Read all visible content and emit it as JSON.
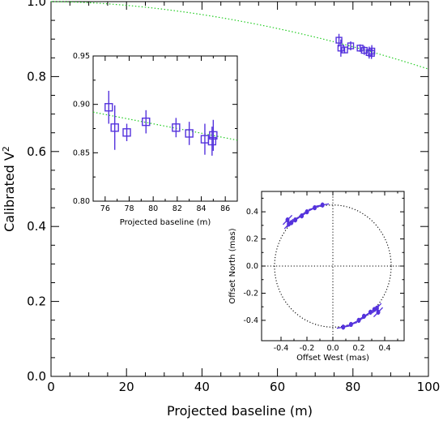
{
  "chart_data": [
    {
      "type": "scatter",
      "xlabel": "Projected baseline (m)",
      "ylabel": "Calibrated V",
      "ylabel_sup": "2",
      "xlim": [
        0,
        100
      ],
      "ylim": [
        0,
        1.0
      ],
      "xticks": [
        0,
        20,
        40,
        60,
        80,
        100
      ],
      "xtick_labels": [
        "0",
        "20",
        "40",
        "60",
        "80",
        "100"
      ],
      "yticks": [
        0,
        0.2,
        0.4,
        0.6,
        0.8,
        1.0
      ],
      "ytick_labels": [
        "0.0",
        "0.2",
        "0.4",
        "0.6",
        "0.8",
        "1.0"
      ],
      "model": {
        "style": "dotted",
        "color": "#22cc22",
        "v2_at_0": 1.0,
        "v2_at_100": 0.82
      },
      "points": [
        {
          "x": 76.3,
          "y": 0.897,
          "err": 0.017
        },
        {
          "x": 76.8,
          "y": 0.876,
          "err": 0.023
        },
        {
          "x": 77.8,
          "y": 0.871,
          "err": 0.009
        },
        {
          "x": 79.4,
          "y": 0.882,
          "err": 0.012
        },
        {
          "x": 81.9,
          "y": 0.876,
          "err": 0.01
        },
        {
          "x": 83.0,
          "y": 0.87,
          "err": 0.012
        },
        {
          "x": 84.3,
          "y": 0.864,
          "err": 0.016
        },
        {
          "x": 84.9,
          "y": 0.862,
          "err": 0.015
        },
        {
          "x": 85.0,
          "y": 0.868,
          "err": 0.016
        }
      ],
      "point_color": "#5533dd"
    },
    {
      "type": "scatter",
      "xlabel": "Projected baseline (m)",
      "ylabel": "",
      "xlim": [
        75,
        87
      ],
      "ylim": [
        0.8,
        0.95
      ],
      "xticks": [
        76,
        78,
        80,
        82,
        84,
        86
      ],
      "xtick_labels": [
        "76",
        "78",
        "80",
        "82",
        "84",
        "86"
      ],
      "yticks": [
        0.8,
        0.85,
        0.9,
        0.95
      ],
      "ytick_labels": [
        "0.80",
        "0.85",
        "0.90",
        "0.95"
      ],
      "model": {
        "style": "dotted",
        "color": "#22cc22",
        "v2_at_75": 0.892,
        "v2_at_87": 0.863
      },
      "points": "same as main panel"
    },
    {
      "type": "scatter",
      "xlabel": "Offset West (mas)",
      "ylabel": "Offset North (mas)",
      "xlim": [
        -0.55,
        0.55
      ],
      "ylim": [
        -0.55,
        0.55
      ],
      "xticks": [
        -0.4,
        -0.2,
        0.0,
        0.2,
        0.4
      ],
      "xtick_labels": [
        "-0.4",
        "-0.2",
        "0.0",
        "0.2",
        "0.4"
      ],
      "yticks": [
        -0.4,
        -0.2,
        0.0,
        0.2,
        0.4
      ],
      "ytick_labels": [
        "-0.4",
        "-0.2",
        "0.0",
        "0.2",
        "0.4"
      ],
      "circle_radius": 0.45,
      "cross": true,
      "points": [
        {
          "x": -0.08,
          "y": 0.45
        },
        {
          "x": -0.14,
          "y": 0.43
        },
        {
          "x": -0.2,
          "y": 0.4
        },
        {
          "x": -0.24,
          "y": 0.37
        },
        {
          "x": -0.29,
          "y": 0.34
        },
        {
          "x": -0.32,
          "y": 0.32
        },
        {
          "x": -0.34,
          "y": 0.31
        },
        {
          "x": -0.35,
          "y": 0.34
        },
        {
          "x": 0.08,
          "y": -0.45
        },
        {
          "x": 0.14,
          "y": -0.43
        },
        {
          "x": 0.2,
          "y": -0.4
        },
        {
          "x": 0.24,
          "y": -0.37
        },
        {
          "x": 0.29,
          "y": -0.34
        },
        {
          "x": 0.32,
          "y": -0.32
        },
        {
          "x": 0.34,
          "y": -0.31
        },
        {
          "x": 0.35,
          "y": -0.34
        }
      ],
      "point_color": "#5533dd"
    }
  ]
}
